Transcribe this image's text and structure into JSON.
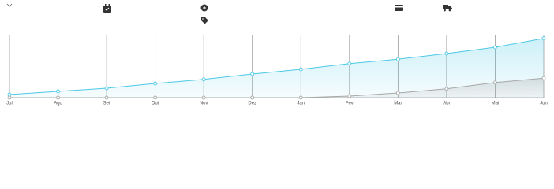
{
  "chart_data": {
    "type": "area",
    "categories": [
      "Jul",
      "Ago",
      "Set",
      "Out",
      "Nov",
      "Dez",
      "Jan",
      "Fev",
      "Mar",
      "Abr",
      "Mai",
      "Jun"
    ],
    "series": [
      {
        "color": "#4dc9e6",
        "values": [
          5,
          10,
          15,
          22.5,
          29,
          37.5,
          45,
          54,
          61,
          70,
          80,
          94
        ]
      },
      {
        "color": "#a8a8a8",
        "values": [
          0,
          0,
          0,
          0,
          0,
          0,
          0,
          2.5,
          7.5,
          14,
          24,
          31
        ]
      }
    ],
    "ylim": [
      0,
      100
    ],
    "grid": true
  }
}
